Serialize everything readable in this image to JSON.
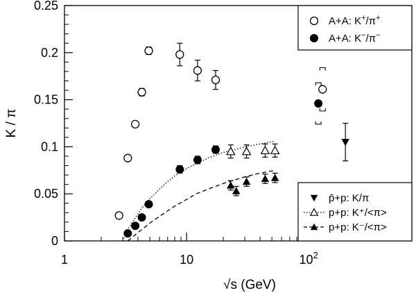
{
  "chart_data": {
    "type": "scatter",
    "xscale": "log",
    "xlim": [
      1,
      700
    ],
    "ylim": [
      0,
      0.25
    ],
    "xlabel": "√s (GeV)",
    "ylabel": "K / π",
    "x_ticks": [
      {
        "value": 1,
        "label": "1"
      },
      {
        "value": 10,
        "label": "10"
      },
      {
        "value": 100,
        "label": "10",
        "sup": "2"
      }
    ],
    "y_ticks": [
      {
        "value": 0,
        "label": "0"
      },
      {
        "value": 0.05,
        "label": "0.05"
      },
      {
        "value": 0.1,
        "label": "0.1"
      },
      {
        "value": 0.15,
        "label": "0.15"
      },
      {
        "value": 0.2,
        "label": "0.2"
      },
      {
        "value": 0.25,
        "label": "0.25"
      }
    ],
    "series": [
      {
        "name": "A+A: K⁺/π⁺",
        "marker": "open-circle",
        "points": [
          {
            "x": 2.8,
            "y": 0.027
          },
          {
            "x": 3.3,
            "y": 0.088
          },
          {
            "x": 3.8,
            "y": 0.124
          },
          {
            "x": 4.3,
            "y": 0.158,
            "err": 0.004
          },
          {
            "x": 4.9,
            "y": 0.202,
            "err": 0.004
          },
          {
            "x": 8.8,
            "y": 0.198,
            "err": 0.012
          },
          {
            "x": 12.3,
            "y": 0.181,
            "err": 0.011
          },
          {
            "x": 17.3,
            "y": 0.171,
            "err": 0.01
          },
          {
            "x": 130,
            "y": 0.161,
            "sys": 0.023
          }
        ]
      },
      {
        "name": "A+A: K⁻/π⁻",
        "marker": "filled-circle",
        "points": [
          {
            "x": 3.3,
            "y": 0.008
          },
          {
            "x": 3.8,
            "y": 0.016
          },
          {
            "x": 4.3,
            "y": 0.025
          },
          {
            "x": 4.9,
            "y": 0.039
          },
          {
            "x": 8.8,
            "y": 0.076,
            "err": 0.004
          },
          {
            "x": 12.3,
            "y": 0.086,
            "err": 0.004
          },
          {
            "x": 17.3,
            "y": 0.097,
            "err": 0.004
          },
          {
            "x": 120,
            "y": 0.146,
            "sys": 0.022
          }
        ]
      },
      {
        "name": "p̄+p: K/π",
        "marker": "filled-triangle-down",
        "points": [
          {
            "x": 200,
            "y": 0.105,
            "err": 0.02
          }
        ]
      },
      {
        "name": "p+p: K⁺/<π>",
        "marker": "open-triangle-up",
        "points": [
          {
            "x": 23,
            "y": 0.095,
            "err": 0.007
          },
          {
            "x": 31,
            "y": 0.095,
            "err": 0.007
          },
          {
            "x": 44,
            "y": 0.096,
            "err": 0.007
          },
          {
            "x": 53,
            "y": 0.096,
            "err": 0.007
          }
        ]
      },
      {
        "name": "p+p: K⁻/<π>",
        "marker": "filled-triangle-up",
        "points": [
          {
            "x": 23,
            "y": 0.059,
            "err": 0.005
          },
          {
            "x": 25.5,
            "y": 0.053,
            "err": 0.005
          },
          {
            "x": 31,
            "y": 0.063,
            "err": 0.005
          },
          {
            "x": 44,
            "y": 0.066,
            "err": 0.005
          },
          {
            "x": 53,
            "y": 0.067,
            "err": 0.005
          }
        ]
      }
    ],
    "curves": [
      {
        "style": "dotted",
        "x": [
          3.0,
          3.3,
          3.6,
          4.0,
          4.5,
          5,
          6,
          7,
          8,
          10,
          12,
          15,
          20,
          25,
          30,
          40,
          53
        ],
        "y": [
          0.0,
          0.012,
          0.02,
          0.029,
          0.038,
          0.045,
          0.055,
          0.063,
          0.069,
          0.077,
          0.082,
          0.088,
          0.094,
          0.097,
          0.1,
          0.103,
          0.106
        ]
      },
      {
        "style": "dashed",
        "x": [
          3.3,
          3.6,
          4.0,
          4.5,
          5,
          6,
          7,
          8,
          10,
          12,
          15,
          20,
          25,
          30,
          40,
          53
        ],
        "y": [
          0.0,
          0.004,
          0.009,
          0.014,
          0.019,
          0.026,
          0.032,
          0.037,
          0.044,
          0.05,
          0.055,
          0.061,
          0.065,
          0.068,
          0.072,
          0.075
        ]
      }
    ],
    "legends": [
      {
        "position": "top-right",
        "entries": [
          {
            "marker": "open-circle",
            "label": "A+A: K",
            "sup": "+",
            "label2": "/π",
            "sup2": "+"
          },
          {
            "marker": "filled-circle",
            "label": "A+A: K",
            "sup": "−",
            "label2": "/π",
            "sup2": "−"
          }
        ]
      },
      {
        "position": "bottom-right",
        "entries": [
          {
            "marker": "filled-triangle-down",
            "line": "none",
            "label": "p̄+p: K/π"
          },
          {
            "marker": "open-triangle-up",
            "line": "dotted",
            "label": "p+p: K⁺/<π>"
          },
          {
            "marker": "filled-triangle-up",
            "line": "dashed",
            "label": "p+p: K⁻/<π>"
          }
        ]
      }
    ]
  }
}
